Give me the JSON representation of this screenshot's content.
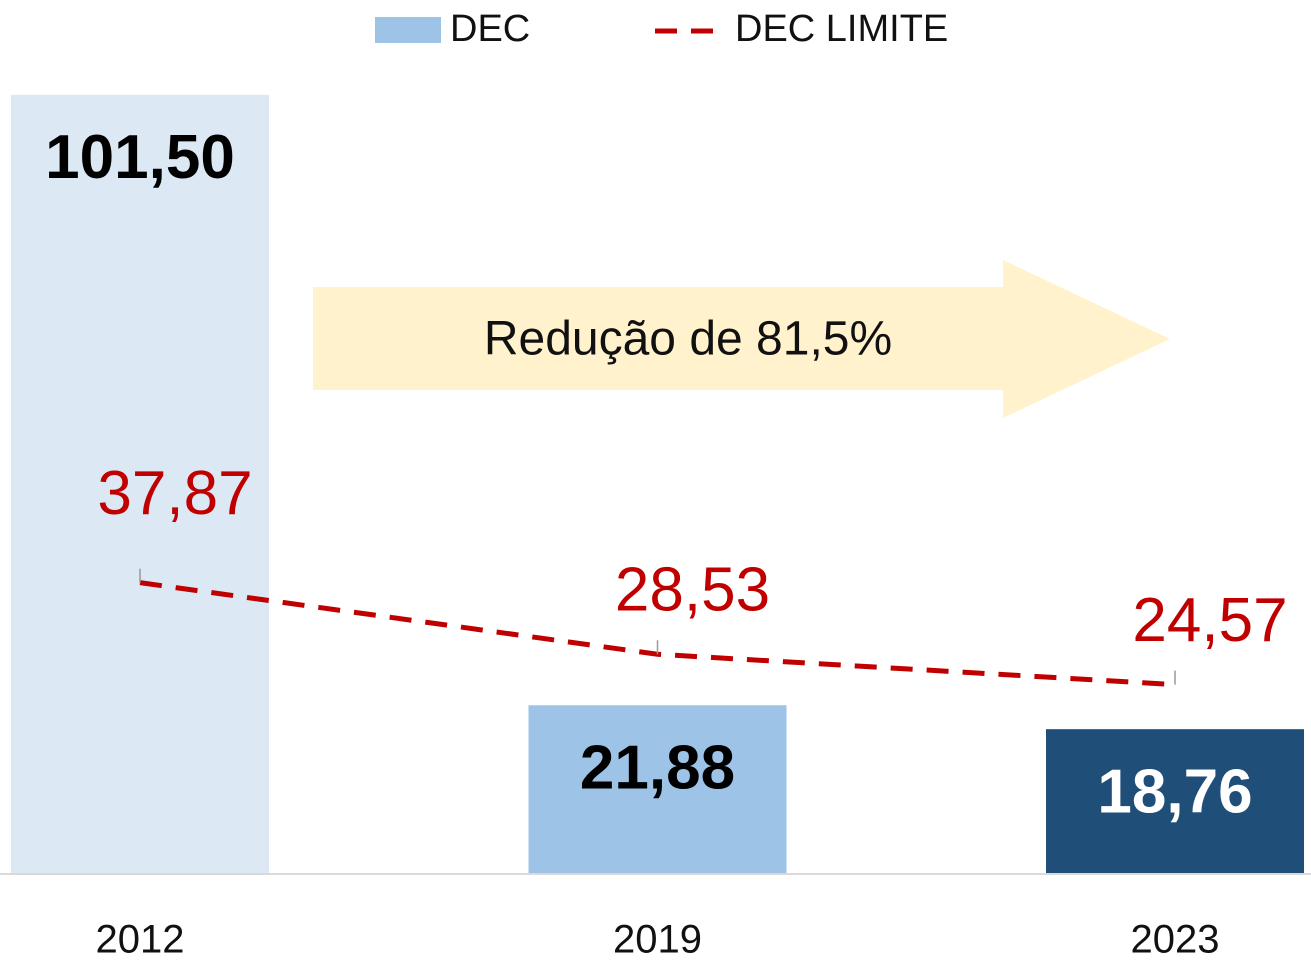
{
  "chart_data": {
    "type": "bar",
    "categories": [
      "2012",
      "2019",
      "2023"
    ],
    "series": [
      {
        "name": "DEC",
        "type": "bar",
        "colors": [
          "#dde8f5",
          "#9dc3e6",
          "#1f4e79"
        ],
        "color": "#9dc3e6",
        "values": [
          101.5,
          21.88,
          18.76
        ],
        "value_labels": [
          "101,50",
          "21,88",
          "18,76"
        ]
      },
      {
        "name": "DEC LIMITE",
        "type": "line",
        "color": "#c00000",
        "dashed": true,
        "values": [
          37.87,
          28.53,
          24.57
        ],
        "value_labels": [
          "37,87",
          "28,53",
          "24,57"
        ]
      }
    ],
    "annotation": "Redução de 81,5%",
    "ylim": [
      0,
      105
    ],
    "legend": "top"
  }
}
